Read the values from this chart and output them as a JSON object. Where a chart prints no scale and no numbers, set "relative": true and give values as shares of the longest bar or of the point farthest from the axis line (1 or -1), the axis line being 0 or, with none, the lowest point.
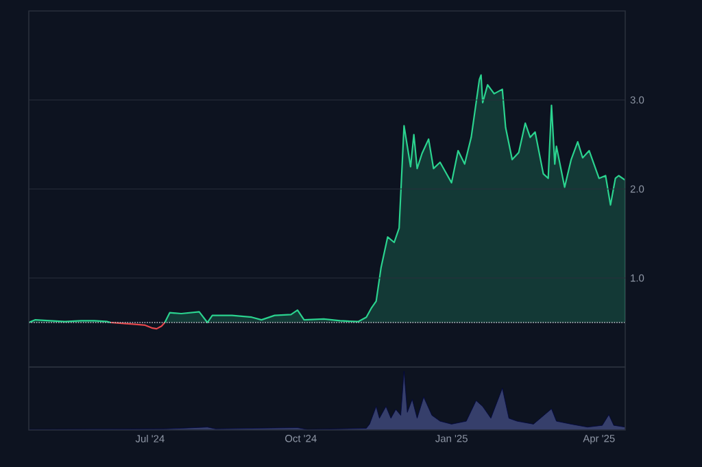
{
  "chart_data": [
    {
      "type": "area",
      "xlim": [
        "2024-04-18",
        "2025-04-17"
      ],
      "ylim": [
        0,
        4
      ],
      "yticks": [
        {
          "value": 1,
          "label": "1.0"
        },
        {
          "value": 2,
          "label": "2.0"
        },
        {
          "value": 3,
          "label": "3.0"
        }
      ],
      "grid": "y",
      "tick_labels": "y",
      "ref_lines": [
        {
          "axis": "y",
          "value": 0.5,
          "line_style": "dotted",
          "color": "#c8ccd4"
        }
      ],
      "series": [
        {
          "type": "area",
          "color": "#2bd38f",
          "x": [
            "2024-04-18",
            "2024-04-22",
            "2024-05-01",
            "2024-05-10",
            "2024-05-20",
            "2024-05-28",
            "2024-06-05",
            "2024-06-07",
            "2024-06-20",
            "2024-07-10",
            "2024-07-13",
            "2024-07-20",
            "2024-07-31",
            "2024-08-05",
            "2024-08-08",
            "2024-08-20",
            "2024-09-01",
            "2024-09-07",
            "2024-09-15",
            "2024-09-25",
            "2024-09-29",
            "2024-10-03",
            "2024-10-15",
            "2024-10-25",
            "2024-11-05",
            "2024-11-10",
            "2024-11-13",
            "2024-11-16",
            "2024-11-19",
            "2024-11-23",
            "2024-11-27",
            "2024-11-30",
            "2024-12-03",
            "2024-12-07",
            "2024-12-09",
            "2024-12-11",
            "2024-12-14",
            "2024-12-18",
            "2024-12-21",
            "2024-12-25",
            "2025-01-01",
            "2025-01-05",
            "2025-01-09",
            "2025-01-13",
            "2025-01-18",
            "2025-01-19",
            "2025-01-20",
            "2025-01-23",
            "2025-01-27",
            "2025-02-01",
            "2025-02-03",
            "2025-02-07",
            "2025-02-11",
            "2025-02-15",
            "2025-02-18",
            "2025-02-21",
            "2025-02-26",
            "2025-03-01",
            "2025-03-03",
            "2025-03-05",
            "2025-03-06",
            "2025-03-11",
            "2025-03-15",
            "2025-03-19",
            "2025-03-22",
            "2025-03-26",
            "2025-04-01",
            "2025-04-05",
            "2025-04-08",
            "2025-04-11",
            "2025-04-13",
            "2025-04-17"
          ],
          "values": [
            0.5,
            0.53,
            0.52,
            0.51,
            0.52,
            0.52,
            0.51,
            0.5,
            null,
            0.5,
            0.61,
            0.6,
            0.62,
            0.5,
            0.58,
            0.58,
            0.56,
            0.53,
            0.58,
            0.59,
            0.64,
            0.53,
            0.54,
            0.52,
            0.51,
            0.56,
            0.66,
            0.74,
            1.12,
            1.46,
            1.4,
            1.56,
            2.71,
            2.25,
            2.61,
            2.23,
            2.4,
            2.56,
            2.23,
            2.3,
            2.07,
            2.43,
            2.28,
            2.58,
            3.23,
            3.28,
            2.97,
            3.17,
            3.07,
            3.12,
            2.69,
            2.33,
            2.41,
            2.74,
            2.58,
            2.64,
            2.17,
            2.12,
            2.94,
            2.28,
            2.48,
            2.02,
            2.33,
            2.53,
            2.35,
            2.43,
            2.12,
            2.15,
            1.82,
            2.12,
            2.15,
            2.1
          ]
        },
        {
          "type": "line",
          "color": "#e5484d",
          "x": [
            "2024-06-07",
            "2024-06-15",
            "2024-06-22",
            "2024-06-28",
            "2024-07-02",
            "2024-07-05",
            "2024-07-08",
            "2024-07-10"
          ],
          "values": [
            0.5,
            0.49,
            0.48,
            0.47,
            0.44,
            0.43,
            0.46,
            0.5
          ]
        }
      ]
    },
    {
      "type": "area",
      "relative": true,
      "color": "#363f6b",
      "tick_labels": "x",
      "xlim": [
        "2024-04-18",
        "2025-04-17"
      ],
      "xticks": [
        {
          "value": "2024-07-01",
          "label": "Jul '24"
        },
        {
          "value": "2024-10-01",
          "label": "Oct '24"
        },
        {
          "value": "2025-01-01",
          "label": "Jan '25"
        },
        {
          "value": "2025-04-01",
          "label": "Apr '25"
        }
      ],
      "x": [
        "2024-04-18",
        "2024-07-10",
        "2024-07-20",
        "2024-08-05",
        "2024-08-10",
        "2024-09-29",
        "2024-10-05",
        "2024-11-10",
        "2024-11-12",
        "2024-11-16",
        "2024-11-18",
        "2024-11-22",
        "2024-11-25",
        "2024-11-28",
        "2024-12-01",
        "2024-12-03",
        "2024-12-05",
        "2024-12-08",
        "2024-12-11",
        "2024-12-15",
        "2024-12-20",
        "2024-12-25",
        "2025-01-01",
        "2025-01-10",
        "2025-01-16",
        "2025-01-20",
        "2025-01-25",
        "2025-02-01",
        "2025-02-05",
        "2025-02-10",
        "2025-02-20",
        "2025-03-03",
        "2025-03-06",
        "2025-03-15",
        "2025-03-25",
        "2025-04-03",
        "2025-04-07",
        "2025-04-10",
        "2025-04-17"
      ],
      "values": [
        0.01,
        0.02,
        0.03,
        0.05,
        0.02,
        0.04,
        0.01,
        0.03,
        0.1,
        0.4,
        0.2,
        0.4,
        0.2,
        0.35,
        0.25,
        1.0,
        0.3,
        0.52,
        0.2,
        0.56,
        0.25,
        0.15,
        0.1,
        0.15,
        0.5,
        0.4,
        0.2,
        0.71,
        0.2,
        0.15,
        0.1,
        0.36,
        0.15,
        0.1,
        0.05,
        0.08,
        0.26,
        0.08,
        0.05
      ]
    }
  ]
}
